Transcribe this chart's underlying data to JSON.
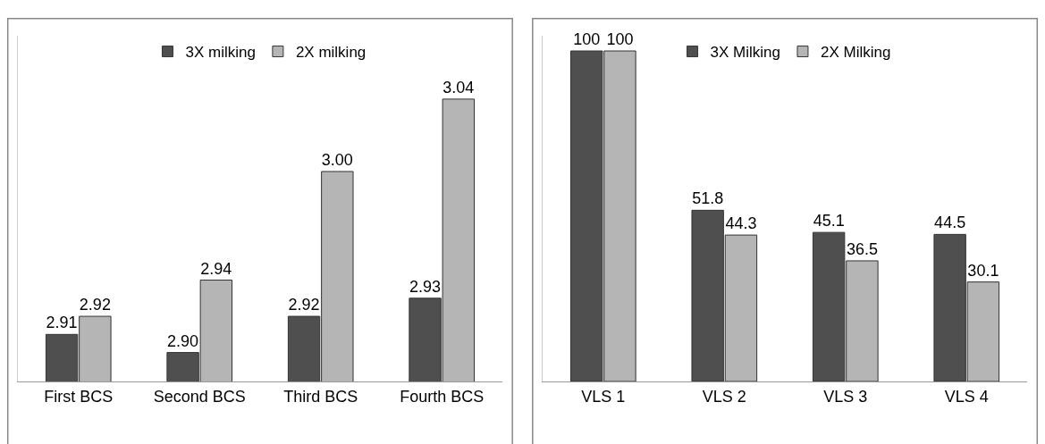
{
  "chart_data": [
    {
      "type": "bar",
      "categories": [
        "First BCS",
        "Second BCS",
        "Third BCS",
        "Fourth BCS"
      ],
      "ylim": [
        2.884,
        3.075
      ],
      "tick_labels": "x",
      "data_labels": true,
      "legend": "top",
      "series": [
        {
          "name": "3X milking",
          "color": "#4f4f4f",
          "values": [
            2.91,
            2.9,
            2.92,
            2.93
          ],
          "value_labels": [
            "2.91",
            "2.90",
            "2.92",
            "2.93"
          ]
        },
        {
          "name": "2X milking",
          "color": "#b5b5b5",
          "values": [
            2.92,
            2.94,
            3.0,
            3.04
          ],
          "value_labels": [
            "2.92",
            "2.94",
            "3.00",
            "3.04"
          ]
        }
      ]
    },
    {
      "type": "bar",
      "categories": [
        "VLS 1",
        "VLS 2",
        "VLS 3",
        "VLS 4"
      ],
      "ylim": [
        0,
        104.6
      ],
      "tick_labels": "x",
      "data_labels": true,
      "legend": "top",
      "series": [
        {
          "name": "3X Milking",
          "color": "#4f4f4f",
          "values": [
            100,
            51.8,
            45.1,
            44.5
          ]
        },
        {
          "name": "2X Milking",
          "color": "#b5b5b5",
          "values": [
            100,
            44.3,
            36.5,
            30.1
          ]
        }
      ]
    }
  ]
}
